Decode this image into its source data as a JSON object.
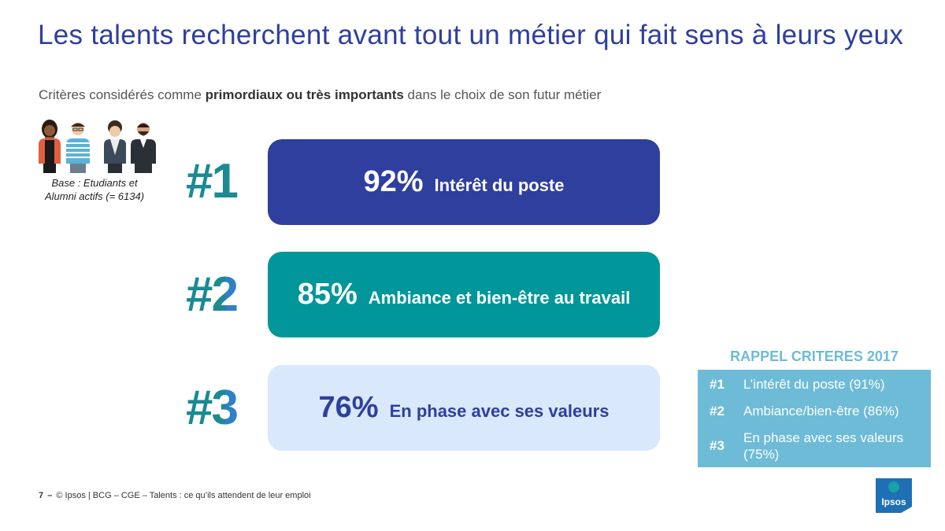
{
  "title": "Les talents recherchent avant tout un métier qui fait sens à leurs yeux",
  "subtitle": {
    "before": "Critères considérés comme ",
    "bold": "primordiaux ou très importants",
    "after": " dans le choix de son futur métier"
  },
  "base_note": {
    "line1": "Base : Etudiants et",
    "line2": "Alumni actifs (= 6134)"
  },
  "criteria": [
    {
      "rank": "#1",
      "pct": "92%",
      "label": "Intérêt du poste"
    },
    {
      "rank": "#2",
      "pct": "85%",
      "label": "Ambiance et bien-être au travail"
    },
    {
      "rank": "#3",
      "pct": "76%",
      "label": "En phase avec ses valeurs"
    }
  ],
  "rappel": {
    "title": "RAPPEL CRITERES 2017",
    "items": [
      {
        "rank": "#1",
        "text": "L’intérêt du poste (91%)"
      },
      {
        "rank": "#2",
        "text": "Ambiance/bien-être (86%)"
      },
      {
        "rank": "#3",
        "text": "En phase avec ses valeurs (75%)"
      }
    ]
  },
  "footer": {
    "page": "7",
    "sep": "–",
    "text": "© Ipsos | BCG – CGE – Talents : ce qu’ils attendent de leur emploi"
  },
  "logo": {
    "text": "Ipsos"
  },
  "colors": {
    "primary": "#2e3f9e",
    "teal": "#00969a",
    "light": "#d9e8fb",
    "rappel": "#6dbbd7"
  }
}
